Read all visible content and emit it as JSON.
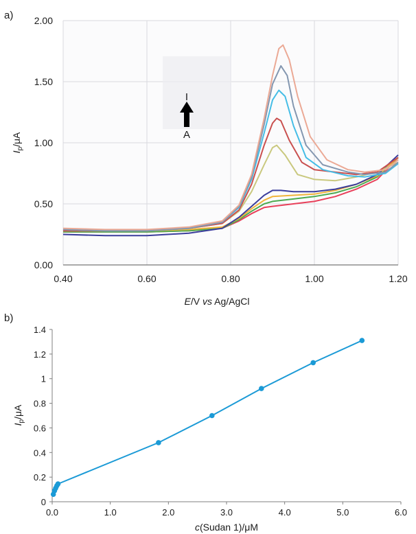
{
  "chart_data": [
    {
      "panel": "a)",
      "type": "line",
      "xlabel": {
        "italic": "E",
        "rest": "/V ",
        "italic2": "vs",
        "rest2": " Ag/AgCl"
      },
      "ylabel": {
        "italic": "I",
        "sub": "p",
        "rest": "/μA"
      },
      "xlim": [
        0.4,
        1.2
      ],
      "ylim": [
        0,
        2.0
      ],
      "x_ticks": [
        "0.40",
        "0.60",
        "0.80",
        "1.00",
        "1.20"
      ],
      "y_ticks": [
        "0.00",
        "0.50",
        "1.00",
        "1.50",
        "2.00"
      ],
      "grid": true,
      "annotation": {
        "top": "I",
        "bottom": "A"
      },
      "series": [
        {
          "color": "#e8405a",
          "points": [
            [
              0.4,
              0.27
            ],
            [
              0.5,
              0.27
            ],
            [
              0.6,
              0.27
            ],
            [
              0.7,
              0.28
            ],
            [
              0.78,
              0.3
            ],
            [
              0.82,
              0.36
            ],
            [
              0.85,
              0.42
            ],
            [
              0.88,
              0.47
            ],
            [
              0.9,
              0.48
            ],
            [
              0.95,
              0.5
            ],
            [
              1.0,
              0.52
            ],
            [
              1.05,
              0.56
            ],
            [
              1.1,
              0.62
            ],
            [
              1.15,
              0.7
            ],
            [
              1.2,
              0.88
            ]
          ]
        },
        {
          "color": "#4caa50",
          "points": [
            [
              0.4,
              0.27
            ],
            [
              0.5,
              0.27
            ],
            [
              0.6,
              0.27
            ],
            [
              0.7,
              0.28
            ],
            [
              0.78,
              0.3
            ],
            [
              0.82,
              0.37
            ],
            [
              0.85,
              0.44
            ],
            [
              0.88,
              0.5
            ],
            [
              0.9,
              0.52
            ],
            [
              0.95,
              0.54
            ],
            [
              1.0,
              0.56
            ],
            [
              1.05,
              0.59
            ],
            [
              1.1,
              0.64
            ],
            [
              1.15,
              0.72
            ],
            [
              1.2,
              0.88
            ]
          ]
        },
        {
          "color": "#f0b43a",
          "points": [
            [
              0.4,
              0.28
            ],
            [
              0.5,
              0.28
            ],
            [
              0.6,
              0.28
            ],
            [
              0.7,
              0.29
            ],
            [
              0.78,
              0.31
            ],
            [
              0.82,
              0.38
            ],
            [
              0.85,
              0.46
            ],
            [
              0.88,
              0.53
            ],
            [
              0.9,
              0.56
            ],
            [
              0.95,
              0.57
            ],
            [
              1.0,
              0.58
            ],
            [
              1.05,
              0.61
            ],
            [
              1.1,
              0.66
            ],
            [
              1.15,
              0.73
            ],
            [
              1.2,
              0.88
            ]
          ]
        },
        {
          "color": "#3b3d9c",
          "points": [
            [
              0.4,
              0.25
            ],
            [
              0.5,
              0.24
            ],
            [
              0.6,
              0.24
            ],
            [
              0.7,
              0.26
            ],
            [
              0.78,
              0.3
            ],
            [
              0.82,
              0.39
            ],
            [
              0.85,
              0.48
            ],
            [
              0.88,
              0.57
            ],
            [
              0.9,
              0.61
            ],
            [
              0.92,
              0.61
            ],
            [
              0.95,
              0.6
            ],
            [
              1.0,
              0.6
            ],
            [
              1.05,
              0.62
            ],
            [
              1.1,
              0.66
            ],
            [
              1.15,
              0.74
            ],
            [
              1.2,
              0.9
            ]
          ]
        },
        {
          "color": "#c9c87e",
          "points": [
            [
              0.4,
              0.28
            ],
            [
              0.5,
              0.28
            ],
            [
              0.6,
              0.28
            ],
            [
              0.7,
              0.3
            ],
            [
              0.78,
              0.34
            ],
            [
              0.82,
              0.44
            ],
            [
              0.85,
              0.6
            ],
            [
              0.88,
              0.82
            ],
            [
              0.9,
              0.96
            ],
            [
              0.91,
              0.98
            ],
            [
              0.93,
              0.9
            ],
            [
              0.96,
              0.74
            ],
            [
              1.0,
              0.7
            ],
            [
              1.05,
              0.69
            ],
            [
              1.1,
              0.72
            ],
            [
              1.15,
              0.76
            ],
            [
              1.2,
              0.84
            ]
          ]
        },
        {
          "color": "#c9504f",
          "points": [
            [
              0.4,
              0.28
            ],
            [
              0.5,
              0.28
            ],
            [
              0.6,
              0.28
            ],
            [
              0.7,
              0.3
            ],
            [
              0.78,
              0.34
            ],
            [
              0.82,
              0.45
            ],
            [
              0.85,
              0.66
            ],
            [
              0.88,
              0.98
            ],
            [
              0.9,
              1.16
            ],
            [
              0.91,
              1.2
            ],
            [
              0.92,
              1.18
            ],
            [
              0.94,
              1.02
            ],
            [
              0.97,
              0.84
            ],
            [
              1.0,
              0.78
            ],
            [
              1.05,
              0.76
            ],
            [
              1.1,
              0.74
            ],
            [
              1.15,
              0.76
            ],
            [
              1.2,
              0.88
            ]
          ]
        },
        {
          "color": "#45bde6",
          "points": [
            [
              0.4,
              0.29
            ],
            [
              0.5,
              0.28
            ],
            [
              0.6,
              0.28
            ],
            [
              0.7,
              0.3
            ],
            [
              0.78,
              0.35
            ],
            [
              0.82,
              0.47
            ],
            [
              0.85,
              0.7
            ],
            [
              0.88,
              1.08
            ],
            [
              0.9,
              1.35
            ],
            [
              0.915,
              1.43
            ],
            [
              0.93,
              1.38
            ],
            [
              0.95,
              1.14
            ],
            [
              0.98,
              0.88
            ],
            [
              1.02,
              0.78
            ],
            [
              1.08,
              0.73
            ],
            [
              1.12,
              0.72
            ],
            [
              1.17,
              0.75
            ],
            [
              1.2,
              0.83
            ]
          ]
        },
        {
          "color": "#8497b0",
          "points": [
            [
              0.4,
              0.29
            ],
            [
              0.5,
              0.28
            ],
            [
              0.6,
              0.28
            ],
            [
              0.7,
              0.3
            ],
            [
              0.78,
              0.35
            ],
            [
              0.82,
              0.48
            ],
            [
              0.85,
              0.72
            ],
            [
              0.88,
              1.15
            ],
            [
              0.9,
              1.48
            ],
            [
              0.92,
              1.63
            ],
            [
              0.935,
              1.55
            ],
            [
              0.95,
              1.3
            ],
            [
              0.98,
              0.98
            ],
            [
              1.02,
              0.82
            ],
            [
              1.08,
              0.76
            ],
            [
              1.12,
              0.74
            ],
            [
              1.17,
              0.76
            ],
            [
              1.2,
              0.84
            ]
          ]
        },
        {
          "color": "#eba995",
          "points": [
            [
              0.4,
              0.3
            ],
            [
              0.5,
              0.29
            ],
            [
              0.6,
              0.29
            ],
            [
              0.7,
              0.31
            ],
            [
              0.78,
              0.36
            ],
            [
              0.82,
              0.49
            ],
            [
              0.85,
              0.74
            ],
            [
              0.88,
              1.2
            ],
            [
              0.9,
              1.55
            ],
            [
              0.915,
              1.77
            ],
            [
              0.925,
              1.8
            ],
            [
              0.94,
              1.68
            ],
            [
              0.96,
              1.38
            ],
            [
              0.99,
              1.05
            ],
            [
              1.03,
              0.86
            ],
            [
              1.08,
              0.78
            ],
            [
              1.12,
              0.76
            ],
            [
              1.17,
              0.78
            ],
            [
              1.2,
              0.86
            ]
          ]
        }
      ]
    },
    {
      "panel": "b)",
      "type": "scatter",
      "xlabel": {
        "italic": "c",
        "rest": "(Sudan 1)/μM"
      },
      "ylabel": {
        "italic": "I",
        "sub": "p",
        "rest": "/μA"
      },
      "xlim": [
        0,
        6.0
      ],
      "ylim": [
        0,
        1.4
      ],
      "x_ticks": [
        "0.0",
        "1.0",
        "2.0",
        "3.0",
        "4.0",
        "5.0",
        "6.0"
      ],
      "y_ticks": [
        "0",
        "0.2",
        "0.4",
        "0.6",
        "0.8",
        "1",
        "1.2",
        "1.4"
      ],
      "grid": false,
      "color": "#1b9ad6",
      "x": [
        0.02,
        0.04,
        0.06,
        0.08,
        0.1,
        1.83,
        2.75,
        3.6,
        4.49,
        5.33
      ],
      "y": [
        0.06,
        0.09,
        0.11,
        0.13,
        0.145,
        0.48,
        0.7,
        0.92,
        1.13,
        1.31
      ]
    }
  ]
}
